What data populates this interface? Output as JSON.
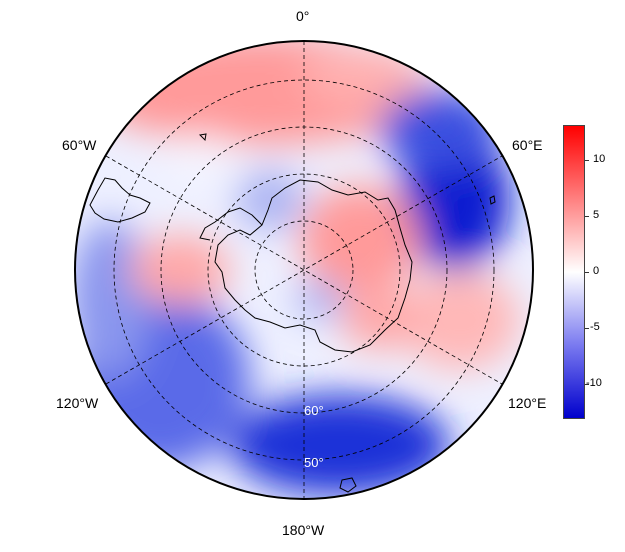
{
  "map": {
    "projection": "south-polar-stereographic",
    "longitude_labels": {
      "top": "0°",
      "upper_left": "60°W",
      "upper_right": "60°E",
      "lower_left": "120°W",
      "lower_right": "120°E",
      "bottom": "180°W"
    },
    "latitude_labels": [
      "60°",
      "50°"
    ]
  },
  "colorbar": {
    "ticks": [
      "10",
      "5",
      "0",
      "-5",
      "-10"
    ],
    "range": [
      -13,
      13
    ],
    "colors": {
      "low": "#0000cc",
      "mid": "#ffffff",
      "high": "#ff0000"
    }
  }
}
